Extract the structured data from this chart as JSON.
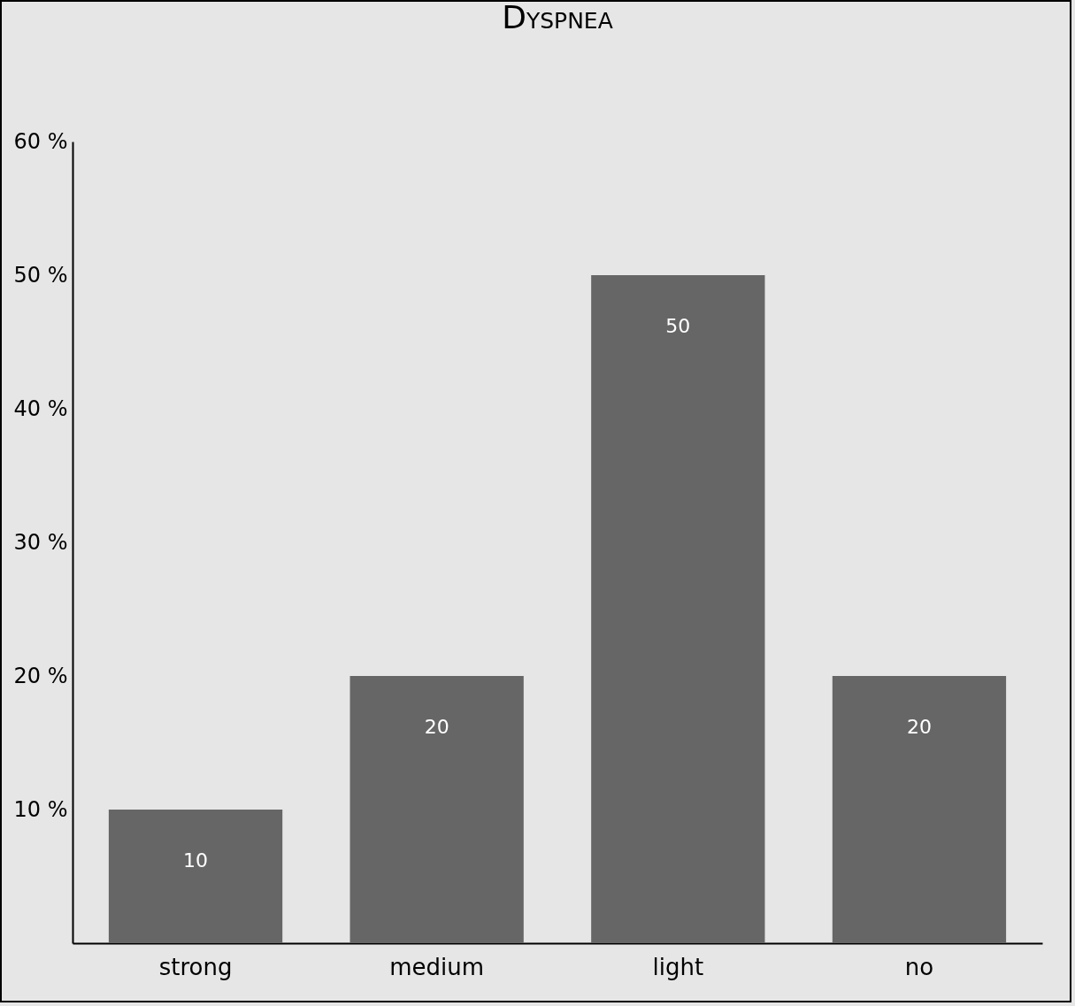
{
  "chart_data": {
    "type": "bar",
    "title": "Dyspnea",
    "categories": [
      "strong",
      "medium",
      "light",
      "no"
    ],
    "values": [
      10,
      20,
      50,
      20
    ],
    "color": "#666666",
    "ylim": [
      0,
      60
    ],
    "yticks": [
      {
        "value": 10,
        "label": "10 %"
      },
      {
        "value": 20,
        "label": "20 %"
      },
      {
        "value": 30,
        "label": "30 %"
      },
      {
        "value": 40,
        "label": "40 %"
      },
      {
        "value": 50,
        "label": "50 %"
      },
      {
        "value": 60,
        "label": "60 %"
      }
    ],
    "data_labels": true,
    "grid": false
  }
}
